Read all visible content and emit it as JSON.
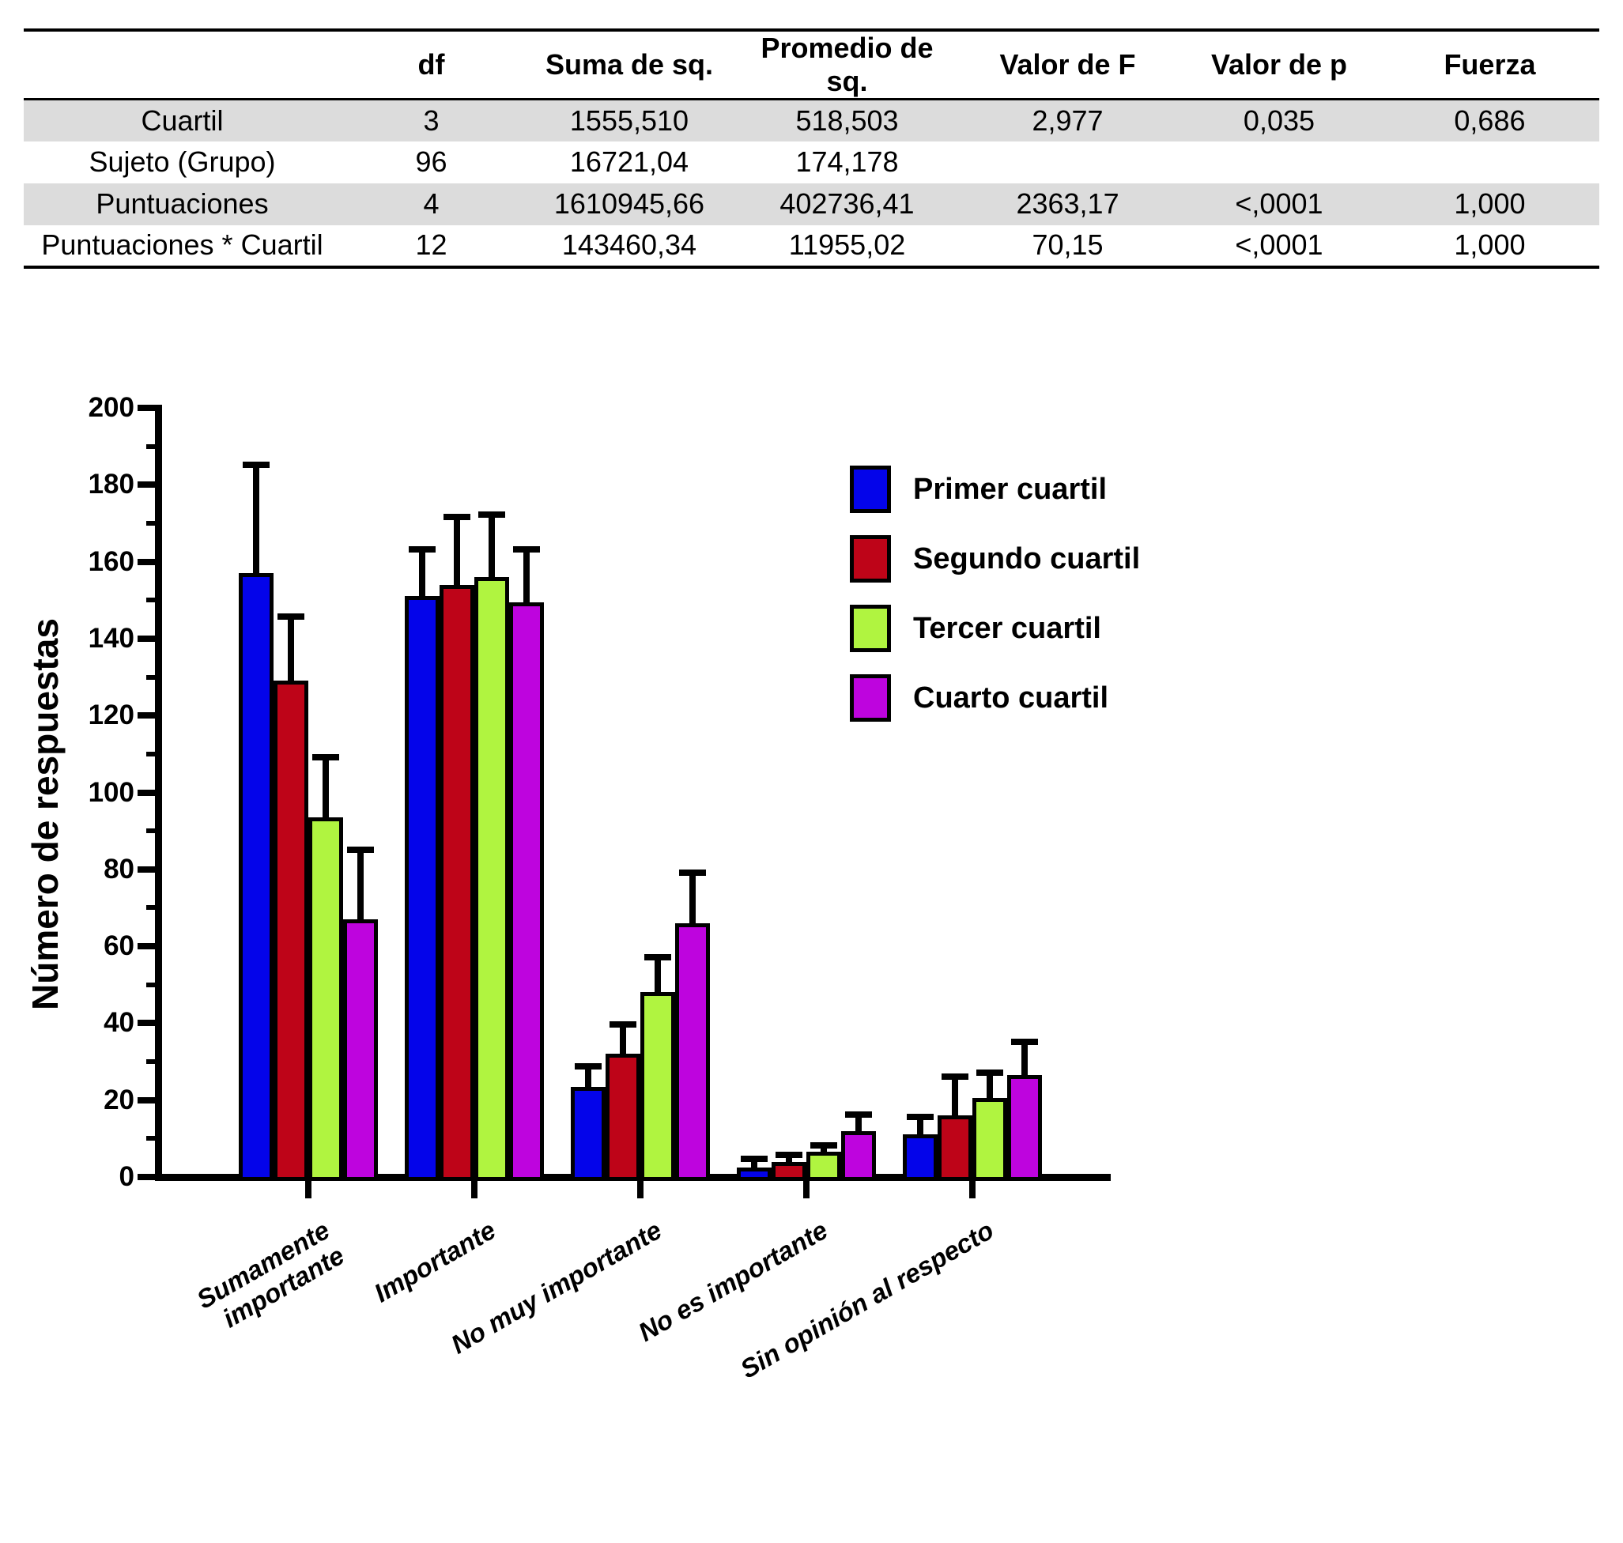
{
  "table": {
    "headers": [
      "",
      "df",
      "Suma de sq.",
      "Promedio de sq.",
      "Valor de F",
      "Valor de p",
      "Fuerza"
    ],
    "rows": [
      {
        "shaded": true,
        "cells": [
          "Cuartil",
          "3",
          "1555,510",
          "518,503",
          "2,977",
          "0,035",
          "0,686"
        ]
      },
      {
        "shaded": false,
        "cells": [
          "Sujeto (Grupo)",
          "96",
          "16721,04",
          "174,178",
          "",
          "",
          ""
        ]
      },
      {
        "shaded": true,
        "cells": [
          "Puntuaciones",
          "4",
          "1610945,66",
          "402736,41",
          "2363,17",
          "<,0001",
          "1,000"
        ]
      },
      {
        "shaded": false,
        "cells": [
          "Puntuaciones * Cuartil",
          "12",
          "143460,34",
          "11955,02",
          "70,15",
          "<,0001",
          "1,000"
        ]
      }
    ],
    "shade_color": "#DCDCDC"
  },
  "chart_data": {
    "type": "bar",
    "ylabel": "Número de respuestas",
    "ylim": [
      0,
      200
    ],
    "yticks": [
      0,
      20,
      40,
      60,
      80,
      100,
      120,
      140,
      160,
      180,
      200
    ],
    "ytick_minor_step": 10,
    "grid": false,
    "legend_position": "upper-right-inside",
    "categories": [
      "Sumamente\nimportante",
      "Importante",
      "No muy importante",
      "No es importante",
      "Sin opinión al respecto"
    ],
    "series": [
      {
        "name": "Primer cuartil",
        "color": "#0404EA",
        "values": [
          157,
          151,
          23.5,
          2.5,
          11
        ],
        "errors": [
          29,
          13,
          6,
          3,
          5.5
        ]
      },
      {
        "name": "Segundo cuartil",
        "color": "#BE0418",
        "values": [
          129,
          154,
          32,
          4,
          16
        ],
        "errors": [
          17.5,
          18.5,
          8.5,
          2.5,
          11
        ]
      },
      {
        "name": "Tercer cuartil",
        "color": "#B0F440",
        "values": [
          93.5,
          156,
          48,
          6.5,
          20.5
        ],
        "errors": [
          16.5,
          17,
          10,
          2.5,
          7.5
        ]
      },
      {
        "name": "Cuarto cuartil",
        "color": "#BE04DE",
        "values": [
          67,
          149.5,
          66,
          12,
          26.5
        ],
        "errors": [
          19,
          14.5,
          14,
          5,
          9.5
        ]
      }
    ]
  }
}
